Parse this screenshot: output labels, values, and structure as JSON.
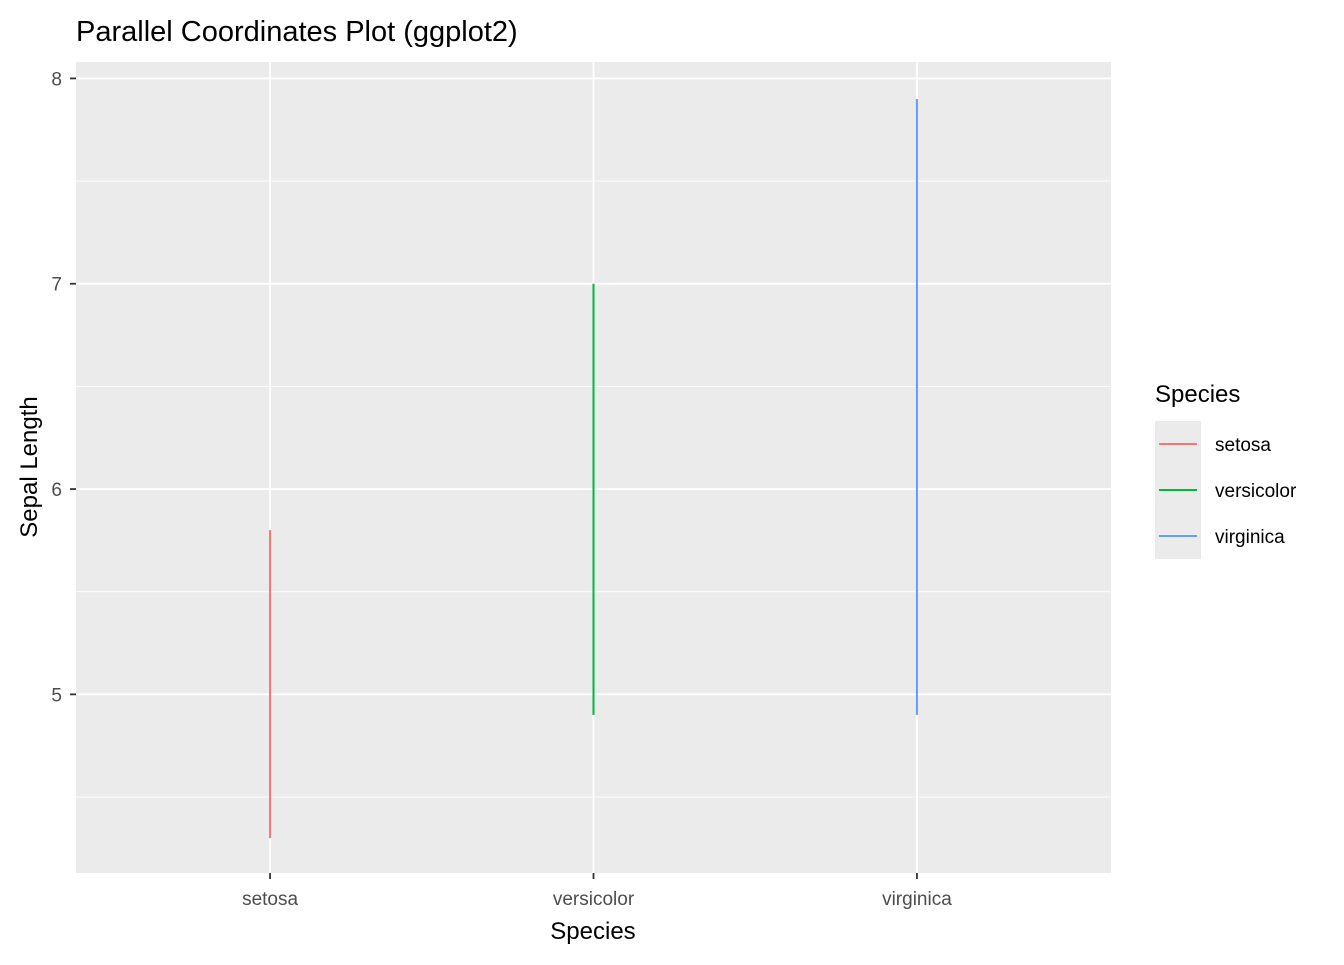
{
  "chart_data": {
    "type": "line",
    "title": "Parallel Coordinates Plot (ggplot2)",
    "xlabel": "Species",
    "ylabel": "Sepal Length",
    "categories": [
      "setosa",
      "versicolor",
      "virginica"
    ],
    "ylim": [
      4.13,
      8.08
    ],
    "y_ticks": [
      5,
      6,
      7,
      8
    ],
    "y_minor_ticks": [
      4.5,
      5.5,
      6.5,
      7.5
    ],
    "grid": true,
    "panel_background": "#ebebeb",
    "grid_color": "#ffffff",
    "legend": {
      "title": "Species",
      "placement": "right"
    },
    "series": [
      {
        "name": "setosa",
        "color": "#F8766D",
        "x": "setosa",
        "min": 4.3,
        "max": 5.8
      },
      {
        "name": "versicolor",
        "color": "#00BA38",
        "x": "versicolor",
        "min": 4.9,
        "max": 7.0
      },
      {
        "name": "virginica",
        "color": "#619CFF",
        "x": "virginica",
        "min": 4.9,
        "max": 7.9
      }
    ]
  }
}
